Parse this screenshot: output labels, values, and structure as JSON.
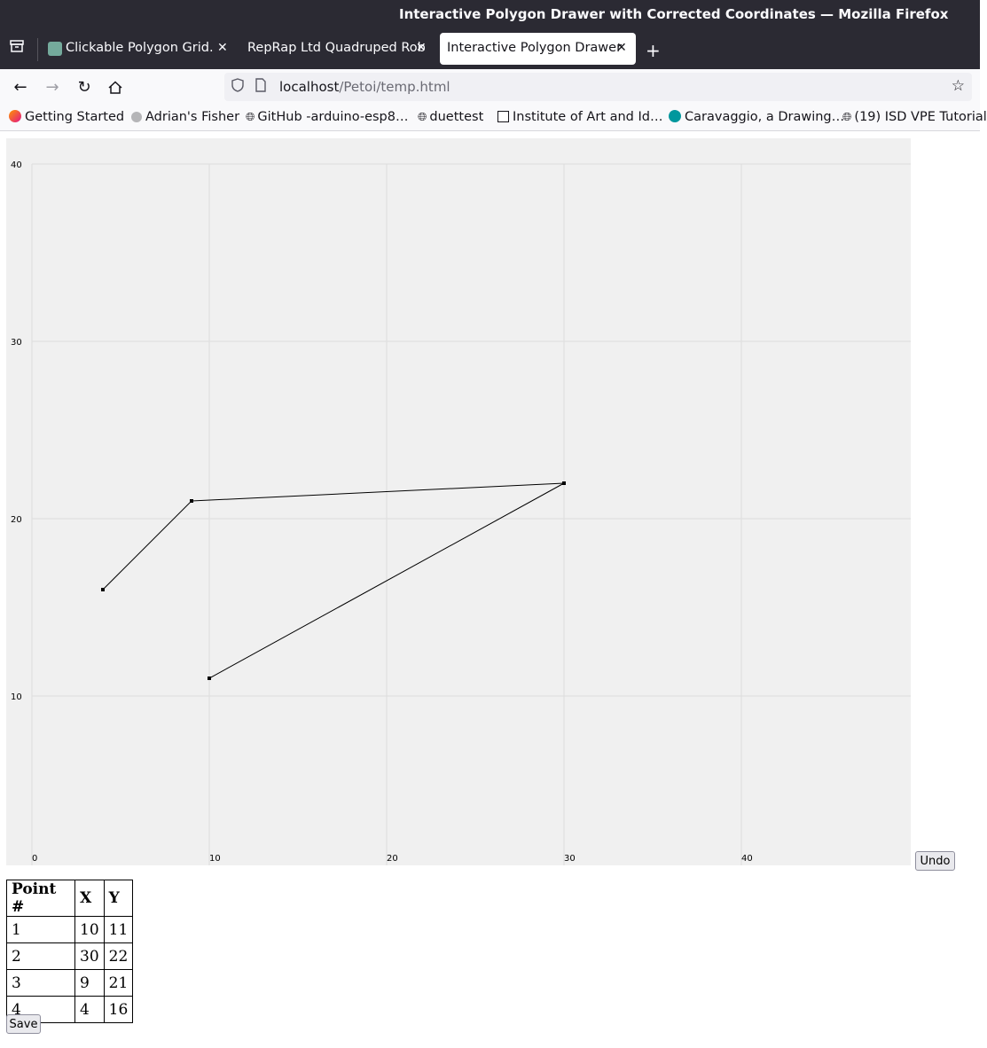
{
  "window": {
    "title": "Interactive Polygon Drawer with Corrected Coordinates — Mozilla Firefox"
  },
  "tabs": [
    {
      "label": "Clickable Polygon Grid.",
      "favicon": "openai-icon",
      "active": false
    },
    {
      "label": "RepRap Ltd Quadruped Rob",
      "favicon": "none",
      "active": false
    },
    {
      "label": "Interactive Polygon Drawer",
      "favicon": "none",
      "active": true
    }
  ],
  "navbar": {
    "url_host": "localhost",
    "url_path": "/Petoi/temp.html"
  },
  "bookmarks": [
    {
      "label": "Getting Started",
      "icon": "firefox-icon"
    },
    {
      "label": "Adrian's Fisher",
      "icon": "circle-icon"
    },
    {
      "label": "GitHub -arduino-esp8…",
      "icon": "globe-icon"
    },
    {
      "label": "duettest",
      "icon": "globe-icon"
    },
    {
      "label": "Institute of Art and Id…",
      "icon": "iai-icon"
    },
    {
      "label": "Caravaggio, a Drawing…",
      "icon": "arduino-icon"
    },
    {
      "label": "(19) ISD VPE Tutorial",
      "icon": "globe-icon"
    }
  ],
  "chart_data": {
    "type": "line",
    "x_ticks": [
      0,
      10,
      20,
      30,
      40
    ],
    "y_ticks": [
      10,
      20,
      30,
      40
    ],
    "xlim": [
      0,
      49.5
    ],
    "ylim": [
      -1,
      40
    ],
    "grid": true,
    "points": [
      {
        "x": 10,
        "y": 11
      },
      {
        "x": 30,
        "y": 22
      },
      {
        "x": 9,
        "y": 21
      },
      {
        "x": 4,
        "y": 16
      }
    ]
  },
  "buttons": {
    "undo": "Undo",
    "save": "Save"
  },
  "table": {
    "headers": [
      "Point #",
      "X",
      "Y"
    ],
    "rows": [
      [
        "1",
        "10",
        "11"
      ],
      [
        "2",
        "30",
        "22"
      ],
      [
        "3",
        "9",
        "21"
      ],
      [
        "4",
        "4",
        "16"
      ]
    ]
  }
}
